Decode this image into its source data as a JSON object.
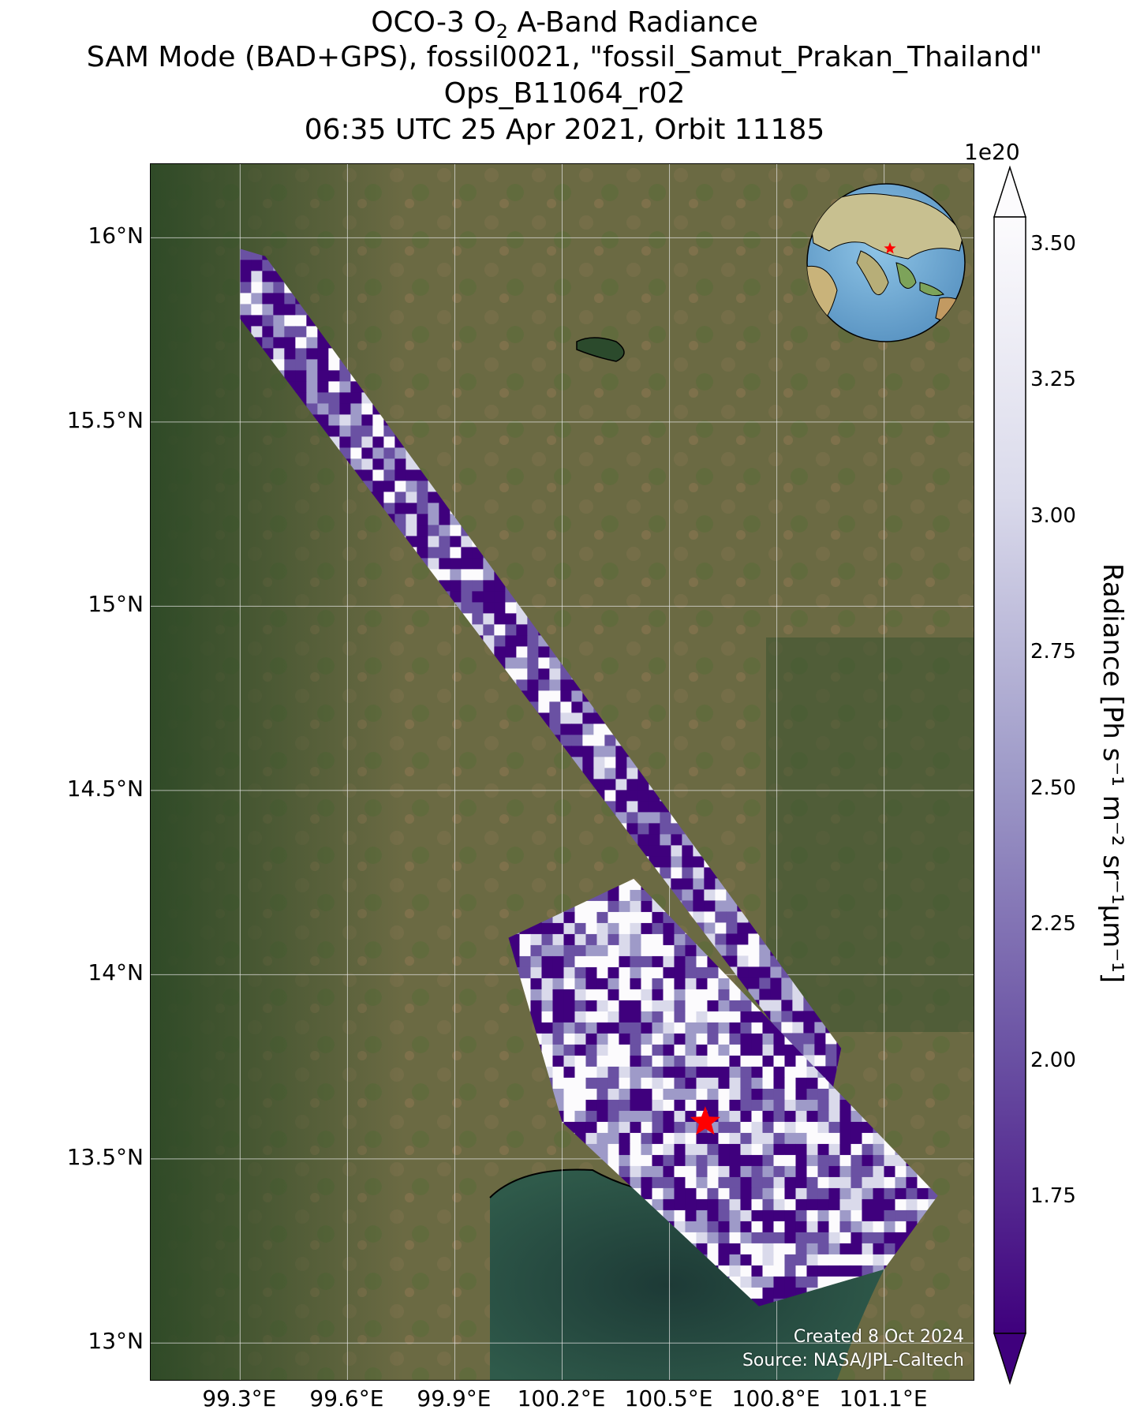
{
  "title": {
    "line1_prefix": "OCO-3 O",
    "line1_sub": "2",
    "line1_suffix": " A-Band Radiance",
    "line2": "SAM Mode (BAD+GPS), fossil0021, \"fossil_Samut_Prakan_Thailand\"",
    "line3": "Ops_B11064_r02",
    "line4": "06:35 UTC 25 Apr 2021, Orbit 11185"
  },
  "map": {
    "lon_range": [
      99.05,
      101.35
    ],
    "lat_range": [
      12.9,
      16.2
    ],
    "lon_ticks": [
      {
        "value": 99.3,
        "label": "99.3°E"
      },
      {
        "value": 99.6,
        "label": "99.6°E"
      },
      {
        "value": 99.9,
        "label": "99.9°E"
      },
      {
        "value": 100.2,
        "label": "100.2°E"
      },
      {
        "value": 100.5,
        "label": "100.5°E"
      },
      {
        "value": 100.8,
        "label": "100.8°E"
      },
      {
        "value": 101.1,
        "label": "101.1°E"
      }
    ],
    "lat_ticks": [
      {
        "value": 16.0,
        "label": "16°N"
      },
      {
        "value": 15.5,
        "label": "15.5°N"
      },
      {
        "value": 15.0,
        "label": "15°N"
      },
      {
        "value": 14.5,
        "label": "14.5°N"
      },
      {
        "value": 14.0,
        "label": "14°N"
      },
      {
        "value": 13.5,
        "label": "13.5°N"
      },
      {
        "value": 13.0,
        "label": "13°N"
      }
    ],
    "target": {
      "lon": 100.6,
      "lat": 13.6,
      "color": "#ff0000"
    },
    "swaths": [
      {
        "corners": [
          [
            99.3,
            15.97
          ],
          [
            99.37,
            15.95
          ],
          [
            100.98,
            13.8
          ],
          [
            100.95,
            13.66
          ],
          [
            99.3,
            15.78
          ]
        ]
      },
      {
        "corners": [
          [
            100.05,
            14.1
          ],
          [
            100.4,
            14.26
          ],
          [
            101.25,
            13.4
          ],
          [
            101.1,
            13.2
          ],
          [
            100.75,
            13.1
          ],
          [
            100.2,
            13.6
          ]
        ]
      }
    ],
    "globe_inset": {
      "center_lon": 100.6,
      "center_lat": 13.6
    }
  },
  "credits": {
    "created": "Created 8 Oct 2024",
    "source": "Source: NASA/JPL-Caltech"
  },
  "colorbar": {
    "exponent": "1e20",
    "label": "Radiance [Ph s⁻¹ m⁻² sr⁻¹μm⁻¹]",
    "vmin": 1.5,
    "vmax": 3.55,
    "ticks": [
      "1.75",
      "2.00",
      "2.25",
      "2.50",
      "2.75",
      "3.00",
      "3.25",
      "3.50"
    ],
    "colors": [
      "#3f007d",
      "#6a51a3",
      "#9e9ac8",
      "#dadaeb",
      "#fcfbfd"
    ]
  }
}
